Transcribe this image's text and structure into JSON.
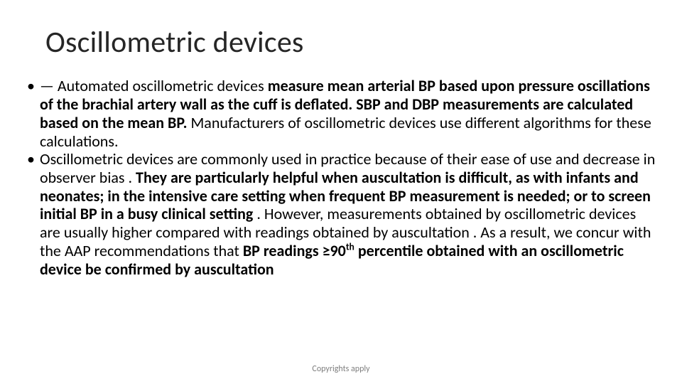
{
  "title": "Oscillometric devices",
  "bullets": [
    {
      "html": "— Automated oscillometric devices <span class=\"b\">measure mean arterial BP based upon pressure oscillations of the brachial artery wall as the cuff is deflated. SBP and DBP measurements are calculated based on the mean BP.</span> Manufacturers of oscillometric devices use different algorithms for these calculations."
    },
    {
      "html": "Oscillometric devices are commonly used in practice because of their ease of use and decrease in observer bias . <span class=\"b\">They are particularly helpful when auscultation is difficult, as with infants and neonates; in the intensive care setting when frequent BP measurement is needed; or to screen initial BP in a busy clinical setting</span> . However, measurements obtained by oscillometric devices are usually higher compared with readings obtained by auscultation . As a result, we concur with the AAP recommendations that <span class=\"b\">BP readings ≥90<sup>th</sup> percentile obtained with an oscillometric device be confirmed by auscultation</span>"
    }
  ],
  "footer": "Copyrights apply",
  "colors": {
    "background": "#ffffff",
    "title": "#262626",
    "body_text": "#000000",
    "footer_text": "#7f7f7f"
  },
  "typography": {
    "title_fontsize_pt": 32,
    "body_fontsize_pt": 17,
    "footer_fontsize_pt": 9,
    "font_family": "Calibri"
  }
}
